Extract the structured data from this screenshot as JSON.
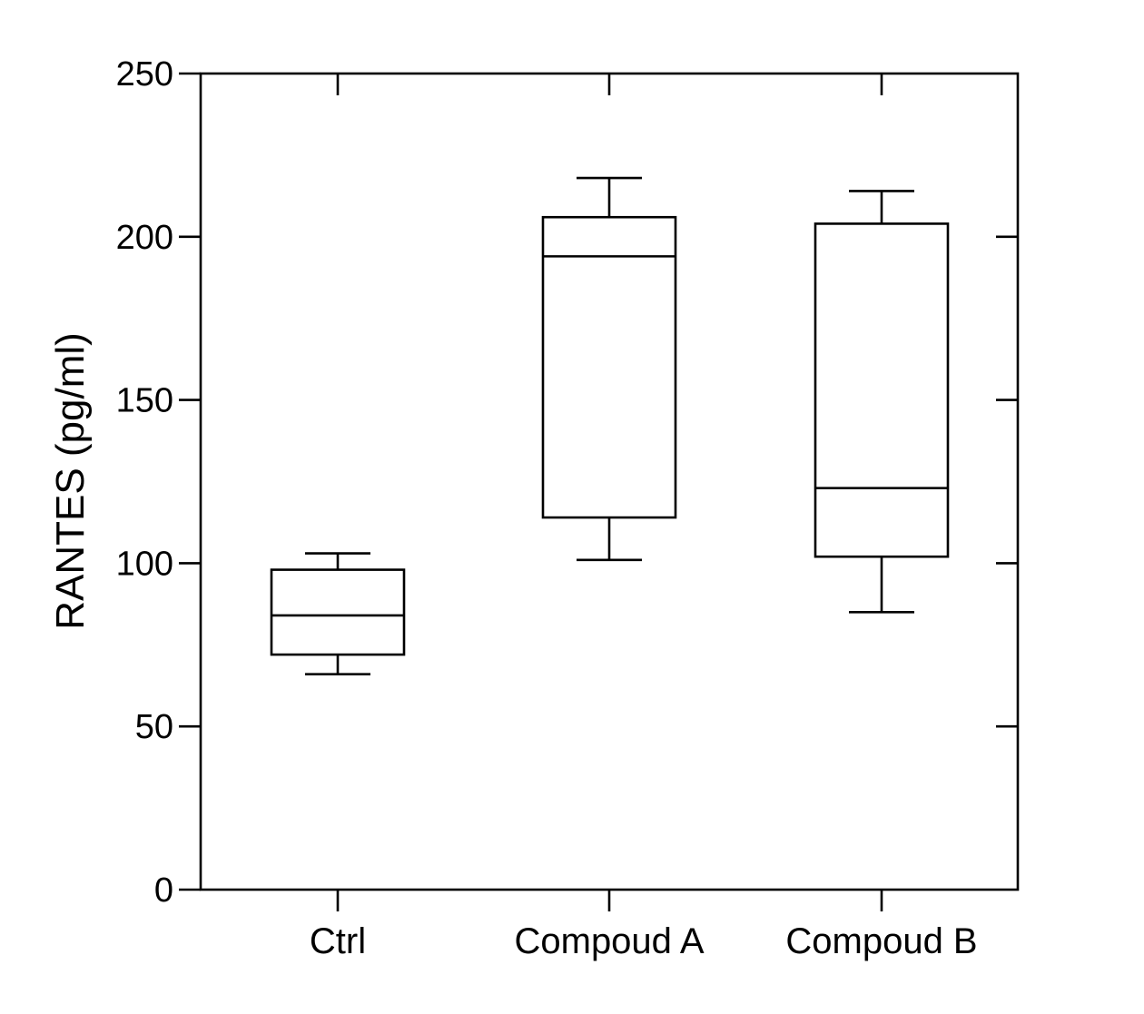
{
  "chart_data": {
    "type": "box",
    "title": "",
    "xlabel": "",
    "ylabel": "RANTES (pg/ml)",
    "ylim": [
      0,
      250
    ],
    "yticks": [
      0,
      50,
      100,
      150,
      200,
      250
    ],
    "grid": false,
    "legend": "none",
    "colors": {
      "line": "#000000",
      "background": "#ffffff",
      "box_fill": "#ffffff"
    },
    "categories": [
      "Ctrl",
      "Compoud A",
      "Compoud B"
    ],
    "boxes": [
      {
        "category": "Ctrl",
        "min": 66,
        "q1": 72,
        "median": 84,
        "q3": 98,
        "max": 103
      },
      {
        "category": "Compoud A",
        "min": 101,
        "q1": 114,
        "median": 194,
        "q3": 206,
        "max": 218
      },
      {
        "category": "Compoud B",
        "min": 85,
        "q1": 102,
        "median": 123,
        "q3": 204,
        "max": 214
      }
    ]
  }
}
